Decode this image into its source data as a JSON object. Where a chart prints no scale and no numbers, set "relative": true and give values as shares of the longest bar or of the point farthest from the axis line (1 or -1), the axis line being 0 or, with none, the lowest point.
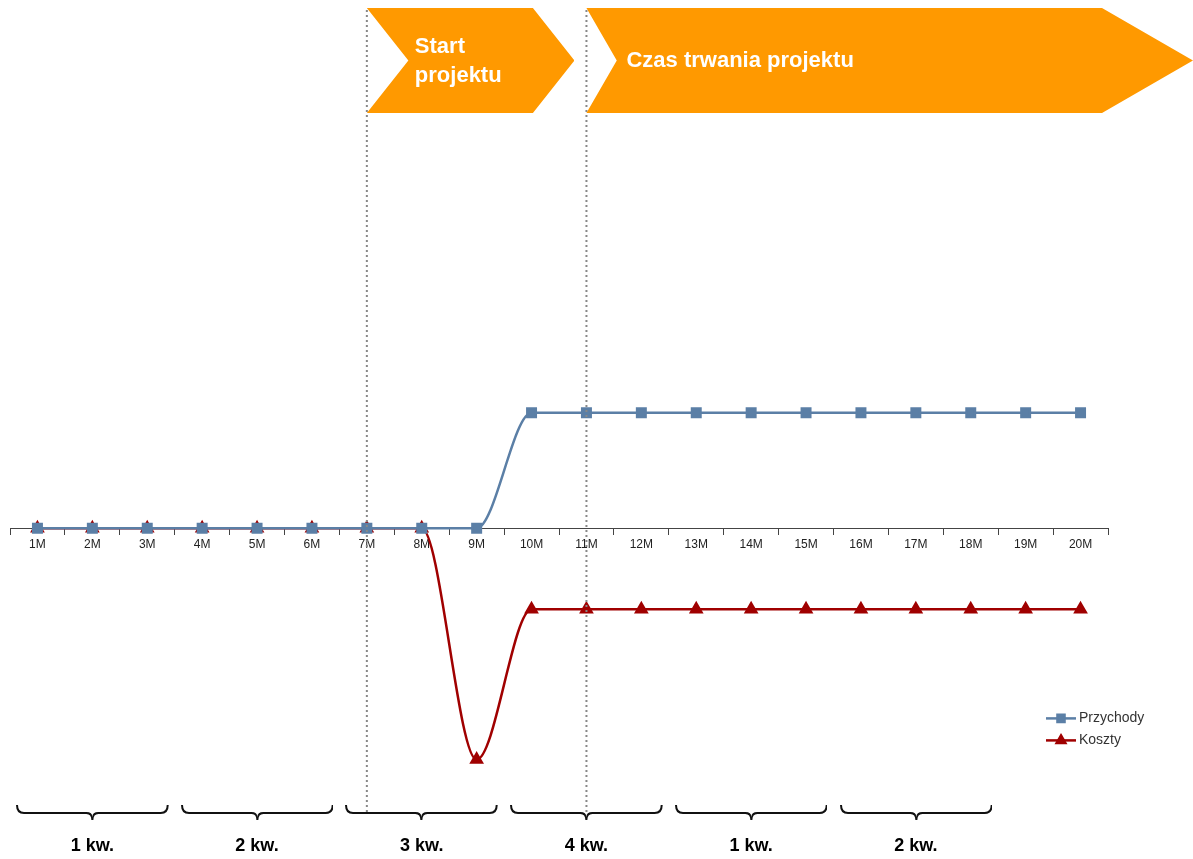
{
  "chart_data": {
    "type": "line",
    "relative": true,
    "categories": [
      "1M",
      "2M",
      "3M",
      "4M",
      "5M",
      "6M",
      "7M",
      "8M",
      "9M",
      "10M",
      "11M",
      "12M",
      "13M",
      "14M",
      "15M",
      "16M",
      "17M",
      "18M",
      "19M",
      "20M"
    ],
    "series": [
      {
        "name": "Przychody",
        "color": "#5b7fa6",
        "marker": "square",
        "values": [
          0,
          0,
          0,
          0,
          0,
          0,
          0,
          0,
          0,
          0.5,
          0.5,
          0.5,
          0.5,
          0.5,
          0.5,
          0.5,
          0.5,
          0.5,
          0.5,
          0.5
        ]
      },
      {
        "name": "Koszty",
        "color": "#a00000",
        "marker": "triangle",
        "values": [
          0,
          0,
          0,
          0,
          0,
          0,
          0,
          0,
          -1,
          -0.35,
          -0.35,
          -0.35,
          -0.35,
          -0.35,
          -0.35,
          -0.35,
          -0.35,
          -0.35,
          -0.35,
          -0.35
        ]
      }
    ],
    "ref_lines": [
      {
        "axis": "x",
        "value": "7M",
        "label": "Start projektu",
        "color": "#888888",
        "line_style": "dotted"
      },
      {
        "axis": "x",
        "value": "11M",
        "label": "Czas trwania projektu",
        "color": "#888888",
        "line_style": "dotted"
      }
    ],
    "legend": "right",
    "annotations": [
      "1 kw.",
      "2 kw.",
      "3 kw.",
      "4 kw.",
      "1 kw.",
      "2 kw."
    ]
  }
}
